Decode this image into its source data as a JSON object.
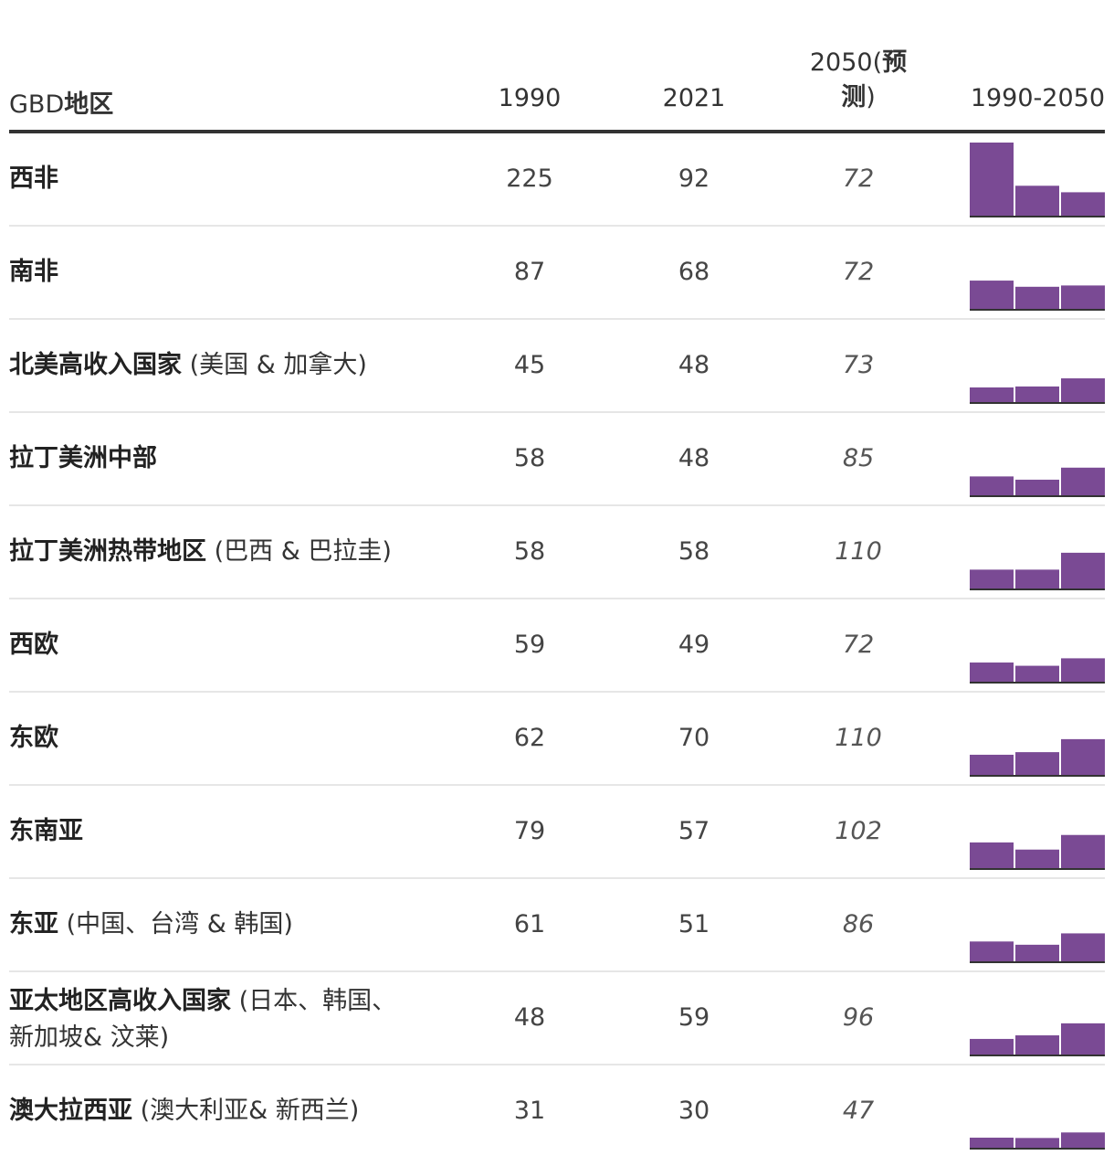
{
  "header": {
    "region_latin": "GBD",
    "region_cjk": "地区",
    "col1990": "1990",
    "col2021": "2021",
    "col2050_line1": "2050(",
    "col2050_line1_bold": "预",
    "col2050_line2_bold": "测",
    "col2050_line2": ")",
    "colSpark": "1990-2050"
  },
  "colors": {
    "bar": "#7a4a94",
    "baseline": "#333333"
  },
  "chart_data": {
    "type": "table",
    "columns": [
      "GBD地区",
      "1990",
      "2021",
      "2050(预测)",
      "1990-2050"
    ],
    "sparkline_scale_max": 225,
    "rows": [
      {
        "name": "西非",
        "sub": "",
        "v1990": 225,
        "v2021": 92,
        "v2050": 72
      },
      {
        "name": "南非",
        "sub": "",
        "v1990": 87,
        "v2021": 68,
        "v2050": 72
      },
      {
        "name": "北美高收入国家",
        "sub": " (美国 & 加拿大)",
        "v1990": 45,
        "v2021": 48,
        "v2050": 73
      },
      {
        "name": "拉丁美洲中部",
        "sub": "",
        "v1990": 58,
        "v2021": 48,
        "v2050": 85
      },
      {
        "name": "拉丁美洲热带地区",
        "sub": " (巴西 & 巴拉圭)",
        "v1990": 58,
        "v2021": 58,
        "v2050": 110
      },
      {
        "name": "西欧",
        "sub": "",
        "v1990": 59,
        "v2021": 49,
        "v2050": 72
      },
      {
        "name": "东欧",
        "sub": "",
        "v1990": 62,
        "v2021": 70,
        "v2050": 110
      },
      {
        "name": "东南亚",
        "sub": "",
        "v1990": 79,
        "v2021": 57,
        "v2050": 102
      },
      {
        "name": "东亚",
        "sub": " (中国、台湾 & 韩国)",
        "v1990": 61,
        "v2021": 51,
        "v2050": 86
      },
      {
        "name": "亚太地区高收入国家",
        "sub": " (日本、韩国、",
        "sub2": "新加坡& 汶莱)",
        "v1990": 48,
        "v2021": 59,
        "v2050": 96
      },
      {
        "name": "澳大拉西亚",
        "sub": " (澳大利亚& 新西兰)",
        "v1990": 31,
        "v2021": 30,
        "v2050": 47
      }
    ]
  }
}
